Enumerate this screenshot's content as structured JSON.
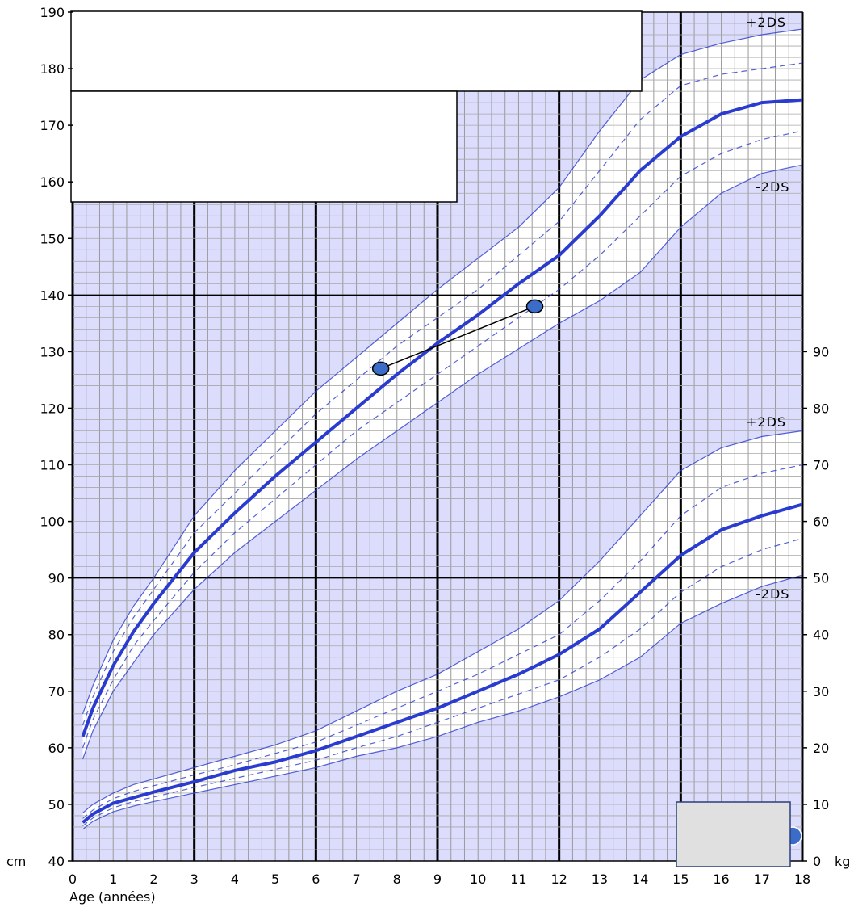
{
  "chart_data": {
    "type": "line",
    "title": "",
    "xlabel": "Age (années)",
    "xlim": [
      0,
      18
    ],
    "x_ticks": [
      "0",
      "1",
      "2",
      "3",
      "4",
      "5",
      "6",
      "7",
      "8",
      "9",
      "10",
      "11",
      "12",
      "13",
      "14",
      "15",
      "16",
      "17",
      "18"
    ],
    "height_axis": {
      "side": "left",
      "unit_label": "cm",
      "ylim": [
        40,
        190
      ],
      "ticks": [
        "40",
        "50",
        "60",
        "70",
        "80",
        "90",
        "100",
        "110",
        "120",
        "130",
        "140",
        "150",
        "160",
        "170",
        "180",
        "190"
      ]
    },
    "weight_axis": {
      "side": "right",
      "unit_label": "kg",
      "ylim": [
        0,
        90
      ],
      "ticks": [
        "0",
        "10",
        "20",
        "30",
        "40",
        "50",
        "60",
        "70",
        "80",
        "90"
      ]
    },
    "grid": true,
    "background_color": "#dcdcfc",
    "band_color": "#ffffff",
    "curve_color": "#2a3bd0",
    "point_color": "#3a6cc8",
    "ds_labels": {
      "upper": "+2DS",
      "lower": "-2DS"
    },
    "height_curves": {
      "x": [
        0.25,
        0.5,
        1,
        1.5,
        2,
        3,
        4,
        5,
        6,
        7,
        8,
        9,
        10,
        11,
        12,
        13,
        14,
        15,
        16,
        17,
        18
      ],
      "series": [
        {
          "role": "+2DS",
          "style": "thin",
          "values": [
            66,
            71,
            79,
            85,
            90,
            101,
            109,
            116,
            123,
            129,
            135,
            141,
            146.5,
            152,
            159,
            169,
            178,
            182.5,
            184.5,
            186,
            187
          ]
        },
        {
          "role": "+1DS",
          "style": "dashed",
          "values": [
            64,
            69,
            77,
            83,
            88,
            98,
            105,
            112,
            119,
            125,
            131,
            136,
            141,
            147,
            153,
            162,
            171,
            177,
            179,
            180,
            181
          ]
        },
        {
          "role": "median",
          "style": "bold",
          "values": [
            62,
            67,
            74.5,
            80.5,
            85.5,
            94.5,
            101.5,
            108,
            114,
            120,
            126,
            131.5,
            136.5,
            142,
            147,
            154,
            162,
            168,
            172,
            174,
            174.5
          ]
        },
        {
          "role": "-1DS",
          "style": "dashed",
          "values": [
            60,
            65,
            72,
            78,
            82.5,
            91,
            98,
            104,
            110,
            116,
            121,
            126,
            131,
            136,
            141,
            147,
            154,
            161,
            165,
            167.5,
            169
          ]
        },
        {
          "role": "-2DS",
          "style": "thin",
          "values": [
            58,
            63,
            70,
            75,
            80,
            88,
            94.5,
            100,
            105.5,
            111,
            116,
            121,
            126,
            130.5,
            135,
            139,
            144,
            152,
            158,
            161.5,
            163
          ]
        }
      ]
    },
    "weight_curves": {
      "x": [
        0.25,
        0.5,
        1,
        1.5,
        2,
        3,
        4,
        5,
        6,
        7,
        8,
        9,
        10,
        11,
        12,
        13,
        14,
        15,
        16,
        17,
        18
      ],
      "series": [
        {
          "role": "+2DS",
          "style": "thin",
          "values": [
            8.5,
            10,
            12,
            13.5,
            14.5,
            16.5,
            18.5,
            20.5,
            23,
            26.5,
            30,
            33,
            37,
            41,
            46,
            53,
            61,
            69,
            73,
            75,
            76
          ]
        },
        {
          "role": "+1DS",
          "style": "dashed",
          "values": [
            7.5,
            9,
            11,
            12.3,
            13.3,
            15.2,
            17,
            19,
            21,
            24,
            27,
            30,
            33,
            36.5,
            40,
            46,
            53,
            61,
            66,
            68.5,
            70
          ]
        },
        {
          "role": "median",
          "style": "bold",
          "values": [
            6.8,
            8.3,
            10.2,
            11.2,
            12.2,
            14,
            16,
            17.5,
            19.5,
            22,
            24.5,
            27,
            30,
            33,
            36.5,
            41,
            47.5,
            54,
            58.5,
            61,
            63
          ]
        },
        {
          "role": "-1DS",
          "style": "dashed",
          "values": [
            6.2,
            7.6,
            9.4,
            10.5,
            11.3,
            13,
            14.6,
            16.2,
            17.8,
            20,
            22,
            24.5,
            27,
            29.5,
            32,
            36,
            41,
            47.5,
            52,
            55,
            57
          ]
        },
        {
          "role": "-2DS",
          "style": "thin",
          "values": [
            5.6,
            7,
            8.7,
            9.7,
            10.5,
            12,
            13.5,
            15,
            16.5,
            18.5,
            20,
            22,
            24.5,
            26.5,
            29,
            32,
            36,
            42,
            45.5,
            48.5,
            50.5
          ]
        }
      ]
    },
    "patient_height_points": [
      {
        "x": 7.6,
        "y": 127
      },
      {
        "x": 11.4,
        "y": 138
      }
    ]
  }
}
